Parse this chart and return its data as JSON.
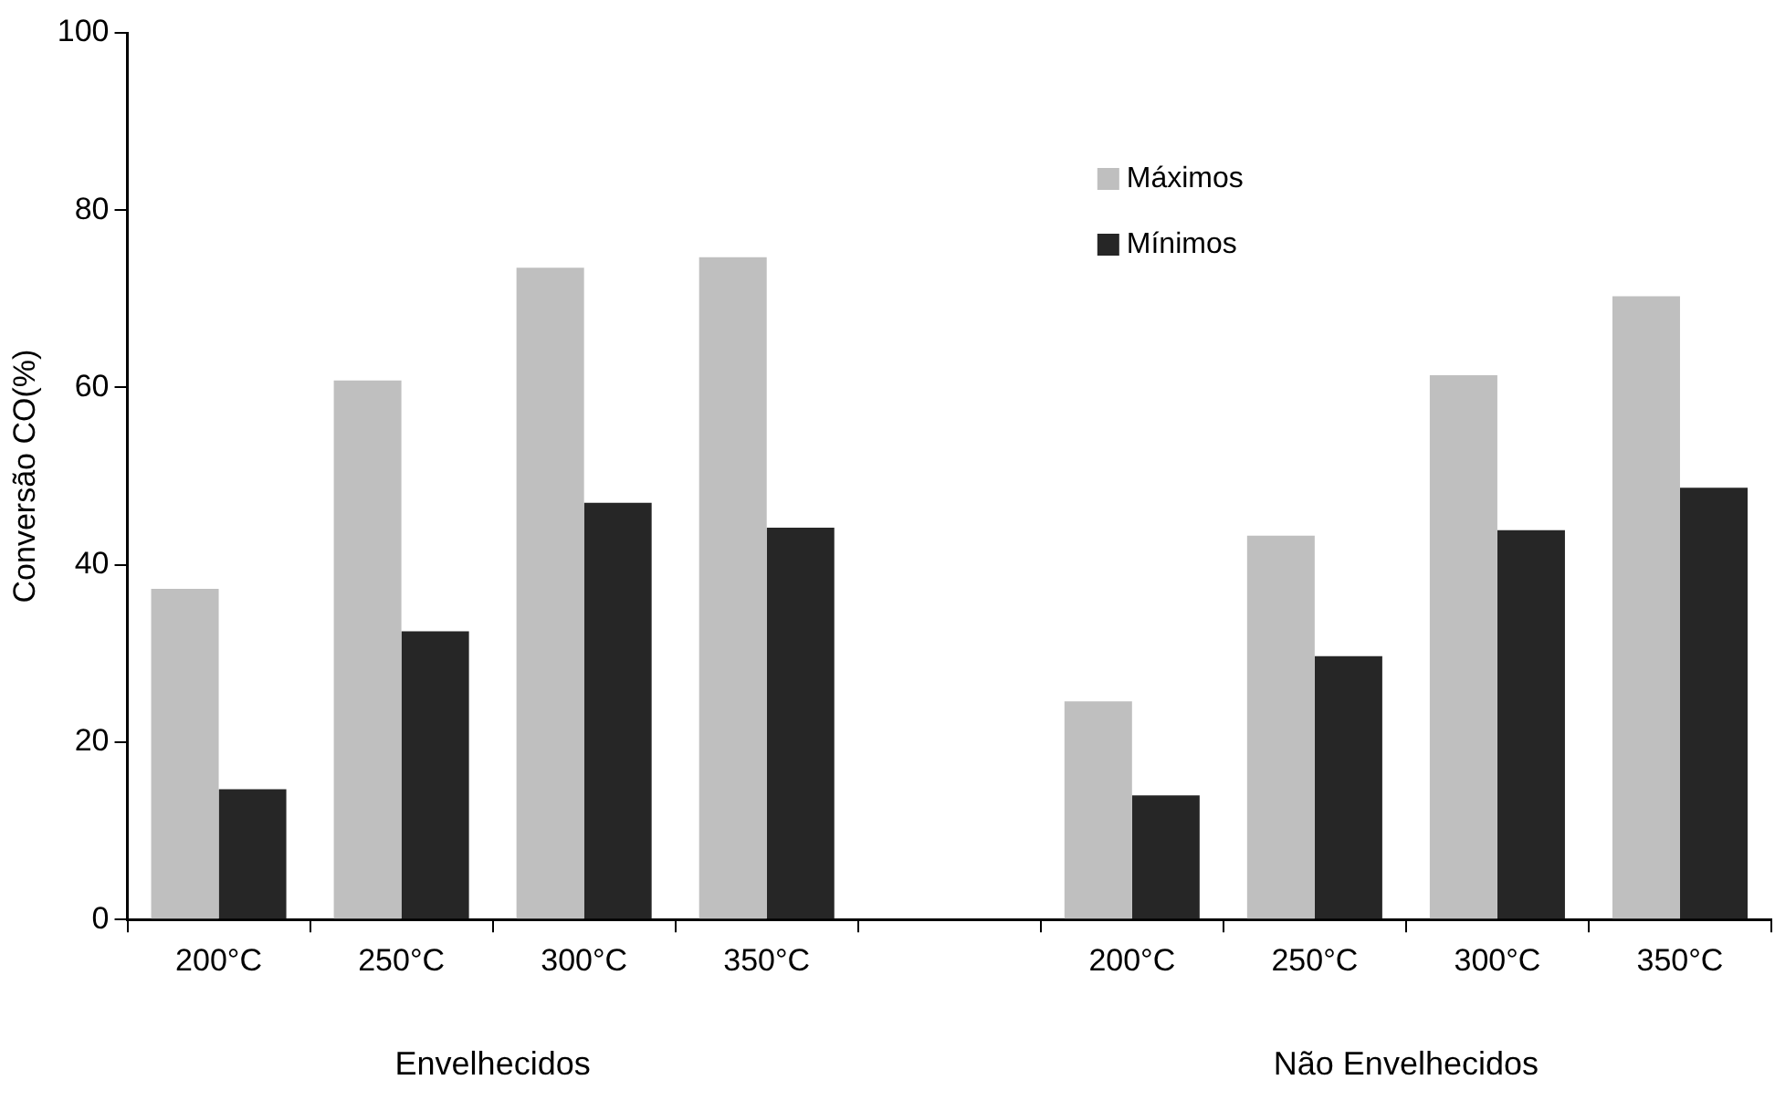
{
  "chart_data": {
    "type": "bar",
    "ylabel": "Conversão CO(%)",
    "categories": [
      "200°C",
      "250°C",
      "300°C",
      "350°C",
      null,
      "200°C",
      "250°C",
      "300°C",
      "350°C"
    ],
    "series": [
      {
        "name": "Máximos",
        "color": "#bfbfbf",
        "values": [
          37.3,
          60.8,
          73.5,
          74.7,
          null,
          24.6,
          43.3,
          61.4,
          70.3
        ]
      },
      {
        "name": "Mínimos",
        "color": "#262626",
        "values": [
          14.7,
          32.5,
          47.0,
          44.2,
          null,
          14.0,
          29.7,
          43.9,
          48.7
        ]
      }
    ],
    "ylim": [
      0,
      100
    ],
    "yticks": [
      0,
      20,
      40,
      60,
      80,
      100
    ],
    "grid": false,
    "legend": "top",
    "annotations": [
      "Envelhecidos",
      "Não Envelhecidos"
    ]
  }
}
